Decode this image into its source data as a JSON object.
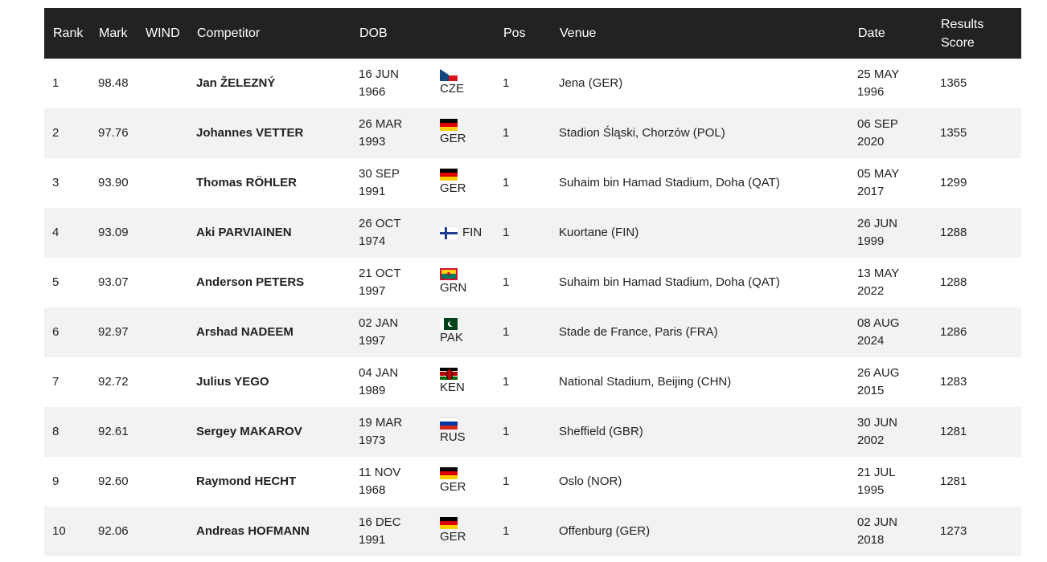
{
  "header": {
    "rank": "Rank",
    "mark": "Mark",
    "wind": "WIND",
    "competitor": "Competitor",
    "dob": "DOB",
    "nat": "",
    "pos": "Pos",
    "venue": "Venue",
    "date": "Date",
    "score_line1": "Results",
    "score_line2": "Score"
  },
  "rows": [
    {
      "rank": "1",
      "mark": "98.48",
      "wind": "",
      "competitor": "Jan ŽELEZNÝ",
      "dob1": "16 JUN",
      "dob2": "1966",
      "nat": "CZE",
      "flag": "cze-flag-icon",
      "pos": "1",
      "venue": "Jena (GER)",
      "date1": "25 MAY",
      "date2": "1996",
      "score": "1365"
    },
    {
      "rank": "2",
      "mark": "97.76",
      "wind": "",
      "competitor": "Johannes VETTER",
      "dob1": "26 MAR",
      "dob2": "1993",
      "nat": "GER",
      "flag": "ger-flag-icon",
      "pos": "1",
      "venue": "Stadion Śląski, Chorzów (POL)",
      "date1": "06 SEP",
      "date2": "2020",
      "score": "1355"
    },
    {
      "rank": "3",
      "mark": "93.90",
      "wind": "",
      "competitor": "Thomas RÖHLER",
      "dob1": "30 SEP",
      "dob2": "1991",
      "nat": "GER",
      "flag": "ger-flag-icon",
      "pos": "1",
      "venue": "Suhaim bin Hamad Stadium, Doha (QAT)",
      "date1": "05 MAY",
      "date2": "2017",
      "score": "1299"
    },
    {
      "rank": "4",
      "mark": "93.09",
      "wind": "",
      "competitor": "Aki PARVIAINEN",
      "dob1": "26 OCT",
      "dob2": "1974",
      "nat": "FIN",
      "flag": "fin-flag-icon",
      "pos": "1",
      "venue": "Kuortane (FIN)",
      "date1": "26 JUN",
      "date2": "1999",
      "score": "1288"
    },
    {
      "rank": "5",
      "mark": "93.07",
      "wind": "",
      "competitor": "Anderson PETERS",
      "dob1": "21 OCT",
      "dob2": "1997",
      "nat": "GRN",
      "flag": "grn-flag-icon",
      "pos": "1",
      "venue": "Suhaim bin Hamad Stadium, Doha (QAT)",
      "date1": "13 MAY",
      "date2": "2022",
      "score": "1288"
    },
    {
      "rank": "6",
      "mark": "92.97",
      "wind": "",
      "competitor": "Arshad NADEEM",
      "dob1": "02 JAN",
      "dob2": "1997",
      "nat": "PAK",
      "flag": "pak-flag-icon",
      "pos": "1",
      "venue": "Stade de France, Paris (FRA)",
      "date1": "08 AUG",
      "date2": "2024",
      "score": "1286"
    },
    {
      "rank": "7",
      "mark": "92.72",
      "wind": "",
      "competitor": "Julius YEGO",
      "dob1": "04 JAN",
      "dob2": "1989",
      "nat": "KEN",
      "flag": "ken-flag-icon",
      "pos": "1",
      "venue": "National Stadium, Beijing (CHN)",
      "date1": "26 AUG",
      "date2": "2015",
      "score": "1283"
    },
    {
      "rank": "8",
      "mark": "92.61",
      "wind": "",
      "competitor": "Sergey MAKAROV",
      "dob1": "19 MAR",
      "dob2": "1973",
      "nat": "RUS",
      "flag": "rus-flag-icon",
      "pos": "1",
      "venue": "Sheffield (GBR)",
      "date1": "30 JUN",
      "date2": "2002",
      "score": "1281"
    },
    {
      "rank": "9",
      "mark": "92.60",
      "wind": "",
      "competitor": "Raymond HECHT",
      "dob1": "11 NOV",
      "dob2": "1968",
      "nat": "GER",
      "flag": "ger-flag-icon",
      "pos": "1",
      "venue": "Oslo (NOR)",
      "date1": "21 JUL",
      "date2": "1995",
      "score": "1281"
    },
    {
      "rank": "10",
      "mark": "92.06",
      "wind": "",
      "competitor": "Andreas HOFMANN",
      "dob1": "16 DEC",
      "dob2": "1991",
      "nat": "GER",
      "flag": "ger-flag-icon",
      "pos": "1",
      "venue": "Offenburg (GER)",
      "date1": "02 JUN",
      "date2": "2018",
      "score": "1273"
    }
  ]
}
